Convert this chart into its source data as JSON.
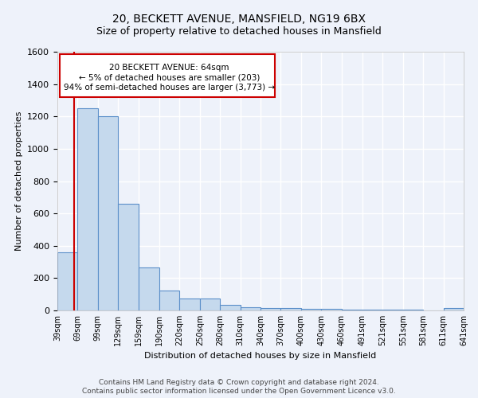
{
  "title": "20, BECKETT AVENUE, MANSFIELD, NG19 6BX",
  "subtitle": "Size of property relative to detached houses in Mansfield",
  "xlabel_bottom": "Distribution of detached houses by size in Mansfield",
  "ylabel": "Number of detached properties",
  "footer_line1": "Contains HM Land Registry data © Crown copyright and database right 2024.",
  "footer_line2": "Contains public sector information licensed under the Open Government Licence v3.0.",
  "bin_edges": [
    39,
    69,
    99,
    129,
    159,
    190,
    220,
    250,
    280,
    310,
    340,
    370,
    400,
    430,
    460,
    491,
    521,
    551,
    581,
    611,
    641
  ],
  "bar_values": [
    360,
    1250,
    1200,
    660,
    265,
    125,
    75,
    75,
    35,
    22,
    15,
    15,
    8,
    8,
    5,
    5,
    3,
    3,
    2,
    15
  ],
  "bar_color": "#c5d9ed",
  "bar_edge_color": "#5b8fc9",
  "background_color": "#eef2fa",
  "grid_color": "#ffffff",
  "red_line_x": 64,
  "annotation_text_line1": "20 BECKETT AVENUE: 64sqm",
  "annotation_text_line2": "← 5% of detached houses are smaller (203)",
  "annotation_text_line3": "94% of semi-detached houses are larger (3,773) →",
  "annotation_box_color": "#ffffff",
  "annotation_box_edge_color": "#cc0000",
  "ylim": [
    0,
    1600
  ],
  "yticks": [
    0,
    200,
    400,
    600,
    800,
    1000,
    1200,
    1400,
    1600
  ]
}
